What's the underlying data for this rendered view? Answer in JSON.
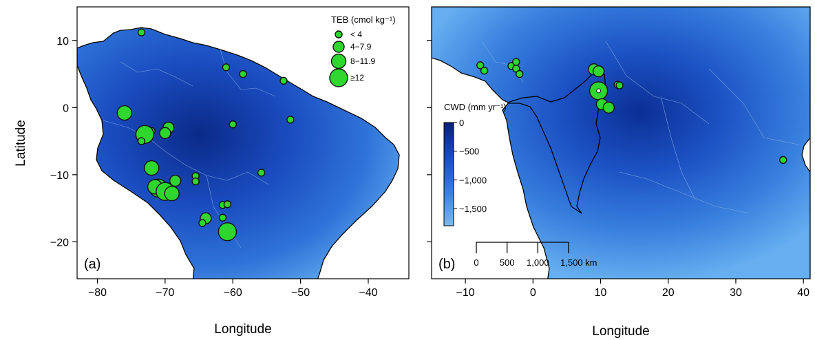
{
  "colors": {
    "land_light": "#5aa3ec",
    "land_mid": "#2d6fd6",
    "land_dark": "#0b2f8f",
    "site_fill": "#2ed62e",
    "site_stroke": "#111111"
  },
  "panel_a": {
    "label": "(a)",
    "xlabel": "Longitude",
    "ylabel": "Latitude",
    "xlim": [
      -83,
      -34
    ],
    "ylim": [
      -25.5,
      15
    ],
    "xticks": [
      {
        "value": -80,
        "label": "−80"
      },
      {
        "value": -70,
        "label": "−70"
      },
      {
        "value": -60,
        "label": "−60"
      },
      {
        "value": -50,
        "label": "−50"
      },
      {
        "value": -40,
        "label": "−40"
      }
    ],
    "yticks": [
      {
        "value": 10,
        "label": "10"
      },
      {
        "value": 0,
        "label": "0"
      },
      {
        "value": -10,
        "label": "−10"
      },
      {
        "value": -20,
        "label": "−20"
      }
    ],
    "legend": {
      "title": "TEB (cmol kg⁻¹)",
      "items": [
        {
          "label": "< 4",
          "class": 1
        },
        {
          "label": "4−7.9",
          "class": 2
        },
        {
          "label": "8−11.9",
          "class": 3
        },
        {
          "label": "≥12",
          "class": 4
        }
      ]
    },
    "sites": [
      {
        "lon": -73.5,
        "lat": 11.2,
        "class": 1
      },
      {
        "lon": -61.0,
        "lat": 6.0,
        "class": 1
      },
      {
        "lon": -58.5,
        "lat": 5.0,
        "class": 1
      },
      {
        "lon": -52.5,
        "lat": 4.0,
        "class": 1
      },
      {
        "lon": -76.0,
        "lat": -0.8,
        "class": 3
      },
      {
        "lon": -72.0,
        "lat": -3.5,
        "class": 1
      },
      {
        "lon": -73.0,
        "lat": -4.0,
        "class": 4
      },
      {
        "lon": -73.5,
        "lat": -5.0,
        "class": 1
      },
      {
        "lon": -69.5,
        "lat": -3.0,
        "class": 2
      },
      {
        "lon": -70.0,
        "lat": -3.8,
        "class": 2
      },
      {
        "lon": -60.0,
        "lat": -2.5,
        "class": 1
      },
      {
        "lon": -51.5,
        "lat": -1.8,
        "class": 1
      },
      {
        "lon": -72.0,
        "lat": -9.0,
        "class": 3
      },
      {
        "lon": -71.0,
        "lat": -12.0,
        "class": 4
      },
      {
        "lon": -71.5,
        "lat": -11.8,
        "class": 3
      },
      {
        "lon": -70.0,
        "lat": -12.5,
        "class": 4
      },
      {
        "lon": -69.0,
        "lat": -12.8,
        "class": 3
      },
      {
        "lon": -68.5,
        "lat": -10.9,
        "class": 2
      },
      {
        "lon": -65.5,
        "lat": -10.2,
        "class": 1
      },
      {
        "lon": -65.5,
        "lat": -11.0,
        "class": 1
      },
      {
        "lon": -55.8,
        "lat": -9.7,
        "class": 1
      },
      {
        "lon": -64.0,
        "lat": -16.5,
        "class": 2
      },
      {
        "lon": -64.5,
        "lat": -17.2,
        "class": 1
      },
      {
        "lon": -61.5,
        "lat": -14.5,
        "class": 1
      },
      {
        "lon": -60.8,
        "lat": -14.4,
        "class": 1
      },
      {
        "lon": -61.5,
        "lat": -16.4,
        "class": 1
      },
      {
        "lon": -60.8,
        "lat": -18.5,
        "class": 4
      }
    ]
  },
  "panel_b": {
    "label": "(b)",
    "xlabel": "Longitude",
    "xlim": [
      -15,
      41
    ],
    "ylim": [
      -25.5,
      15
    ],
    "xticks": [
      {
        "value": -10,
        "label": "−10"
      },
      {
        "value": 0,
        "label": "0"
      },
      {
        "value": 10,
        "label": "10"
      },
      {
        "value": 20,
        "label": "20"
      },
      {
        "value": 30,
        "label": "30"
      },
      {
        "value": 40,
        "label": "40"
      }
    ],
    "colorbar": {
      "title": "CWD (mm yr⁻¹)",
      "range": [
        -1800,
        0
      ],
      "ticks": [
        {
          "value": 0,
          "label": "0"
        },
        {
          "value": -500,
          "label": "−500"
        },
        {
          "value": -1000,
          "label": "−1,000"
        },
        {
          "value": -1500,
          "label": "−1,500"
        }
      ]
    },
    "scalebar": {
      "ticks": [
        "0",
        "500",
        "1,000",
        "1,500 km"
      ]
    },
    "sites": [
      {
        "lon": -7.8,
        "lat": 6.3,
        "class": 1
      },
      {
        "lon": -7.2,
        "lat": 5.5,
        "class": 1
      },
      {
        "lon": -3.2,
        "lat": 6.2,
        "class": 1
      },
      {
        "lon": -2.5,
        "lat": 6.8,
        "class": 1
      },
      {
        "lon": -2.5,
        "lat": 5.8,
        "class": 1
      },
      {
        "lon": -2.0,
        "lat": 5.0,
        "class": 1
      },
      {
        "lon": 9.0,
        "lat": 5.7,
        "class": 2
      },
      {
        "lon": 9.7,
        "lat": 5.4,
        "class": 2
      },
      {
        "lon": 12.5,
        "lat": 3.4,
        "class": 1
      },
      {
        "lon": 12.8,
        "lat": 3.3,
        "class": 1
      },
      {
        "lon": 9.7,
        "lat": 2.5,
        "class": 4
      },
      {
        "lon": 10.2,
        "lat": 0.5,
        "class": 2
      },
      {
        "lon": 11.2,
        "lat": 0.0,
        "class": 2
      },
      {
        "lon": 37.0,
        "lat": -7.8,
        "class": 1
      }
    ]
  }
}
